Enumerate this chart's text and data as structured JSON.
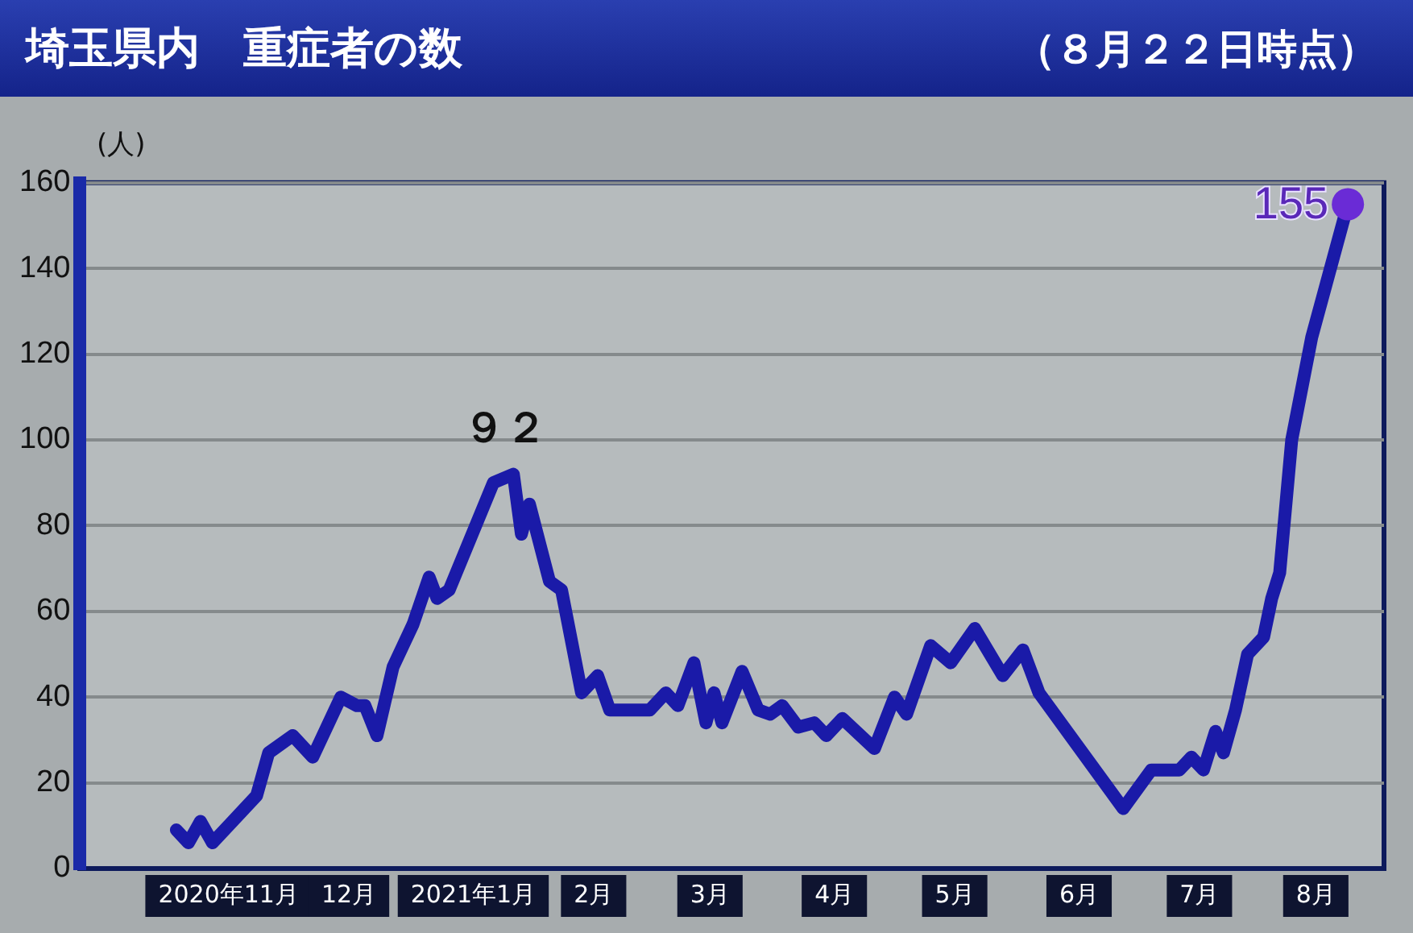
{
  "chart_data": {
    "type": "line",
    "title": "埼玉県内　重症者の数",
    "subtitle": "（８月２２日時点）",
    "ylabel": "(人)",
    "x": [
      "2020-11-03",
      "2020-11-06",
      "2020-11-09",
      "2020-11-12",
      "2020-11-23",
      "2020-11-26",
      "2020-12-02",
      "2020-12-07",
      "2020-12-14",
      "2020-12-18",
      "2020-12-20",
      "2020-12-23",
      "2020-12-27",
      "2021-01-01",
      "2021-01-05",
      "2021-01-07",
      "2021-01-10",
      "2021-01-21",
      "2021-01-26",
      "2021-01-28",
      "2021-01-30",
      "2021-02-04",
      "2021-02-07",
      "2021-02-12",
      "2021-02-16",
      "2021-02-19",
      "2021-03-01",
      "2021-03-05",
      "2021-03-08",
      "2021-03-12",
      "2021-03-15",
      "2021-03-17",
      "2021-03-19",
      "2021-03-24",
      "2021-03-28",
      "2021-03-31",
      "2021-04-03",
      "2021-04-07",
      "2021-04-11",
      "2021-04-14",
      "2021-04-18",
      "2021-04-26",
      "2021-05-01",
      "2021-05-04",
      "2021-05-10",
      "2021-05-15",
      "2021-05-21",
      "2021-05-28",
      "2021-06-02",
      "2021-06-06",
      "2021-06-27",
      "2021-07-04",
      "2021-07-11",
      "2021-07-14",
      "2021-07-17",
      "2021-07-20",
      "2021-07-22",
      "2021-07-25",
      "2021-07-28",
      "2021-08-01",
      "2021-08-03",
      "2021-08-05",
      "2021-08-08",
      "2021-08-13",
      "2021-08-22"
    ],
    "series": [
      {
        "color": "#1a1aa8",
        "values": [
          9,
          6,
          11,
          6,
          17,
          27,
          31,
          26,
          40,
          38,
          38,
          31,
          47,
          57,
          68,
          63,
          65,
          90,
          92,
          78,
          85,
          67,
          65,
          41,
          45,
          37,
          37,
          41,
          38,
          48,
          34,
          41,
          34,
          46,
          37,
          36,
          38,
          33,
          34,
          31,
          35,
          28,
          40,
          36,
          52,
          48,
          56,
          45,
          51,
          41,
          14,
          23,
          23,
          26,
          23,
          32,
          27,
          37,
          50,
          54,
          63,
          69,
          100,
          124,
          155
        ]
      }
    ],
    "xlim": [
      "2020-10-10",
      "2021-08-31"
    ],
    "xticks": [
      {
        "value": "2020-11-16",
        "label": "2020年11月"
      },
      {
        "value": "2020-12-16",
        "label": "12月"
      },
      {
        "value": "2021-01-16",
        "label": "2021年1月"
      },
      {
        "value": "2021-02-15",
        "label": "2月"
      },
      {
        "value": "2021-03-16",
        "label": "3月"
      },
      {
        "value": "2021-04-16",
        "label": "4月"
      },
      {
        "value": "2021-05-16",
        "label": "5月"
      },
      {
        "value": "2021-06-16",
        "label": "6月"
      },
      {
        "value": "2021-07-16",
        "label": "7月"
      },
      {
        "value": "2021-08-14",
        "label": "8月"
      }
    ],
    "ylim": [
      0,
      160
    ],
    "yticks": [
      0,
      20,
      40,
      60,
      80,
      100,
      120,
      140,
      160
    ],
    "grid": "y",
    "legend": false,
    "line_style": "solid",
    "annotations": [
      {
        "text": "９２",
        "x": "2021-01-24",
        "y": 92
      },
      {
        "text": "155",
        "x": "2021-08-22",
        "y": 155
      }
    ]
  }
}
